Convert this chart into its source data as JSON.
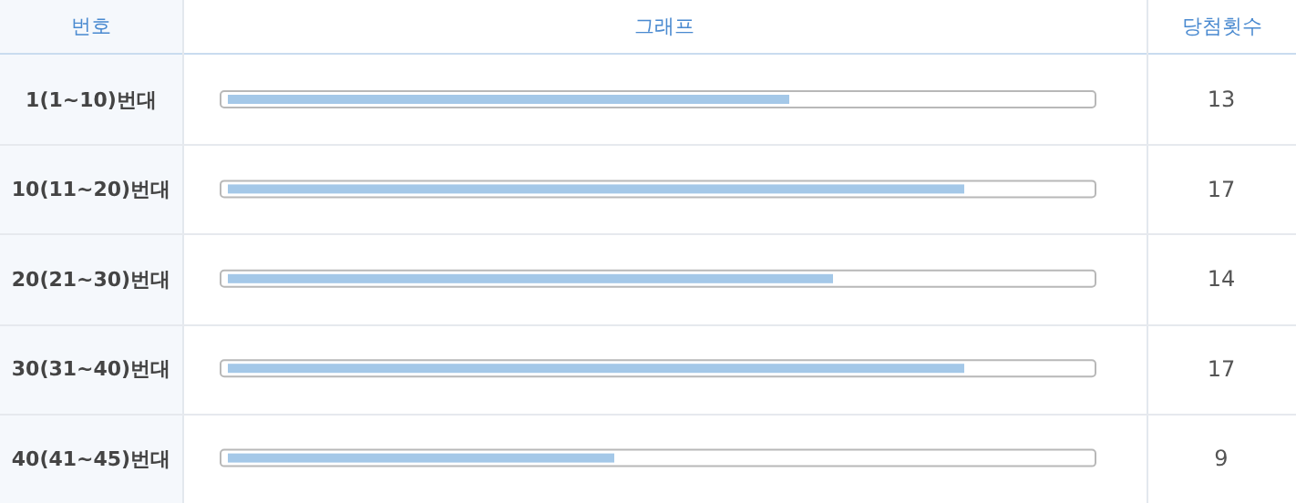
{
  "chart_data": {
    "type": "bar",
    "orientation": "horizontal",
    "ylabel": "번호",
    "xlabel": "그래프",
    "annotations": [
      "당첨횟수"
    ],
    "categories": [
      "1(1~10)번대",
      "10(11~20)번대",
      "20(21~30)번대",
      "30(31~40)번대",
      "40(41~45)번대"
    ],
    "values": [
      13,
      17,
      14,
      17,
      9
    ],
    "color": "#a4c8e8",
    "data_labels": true,
    "grid": "y"
  }
}
